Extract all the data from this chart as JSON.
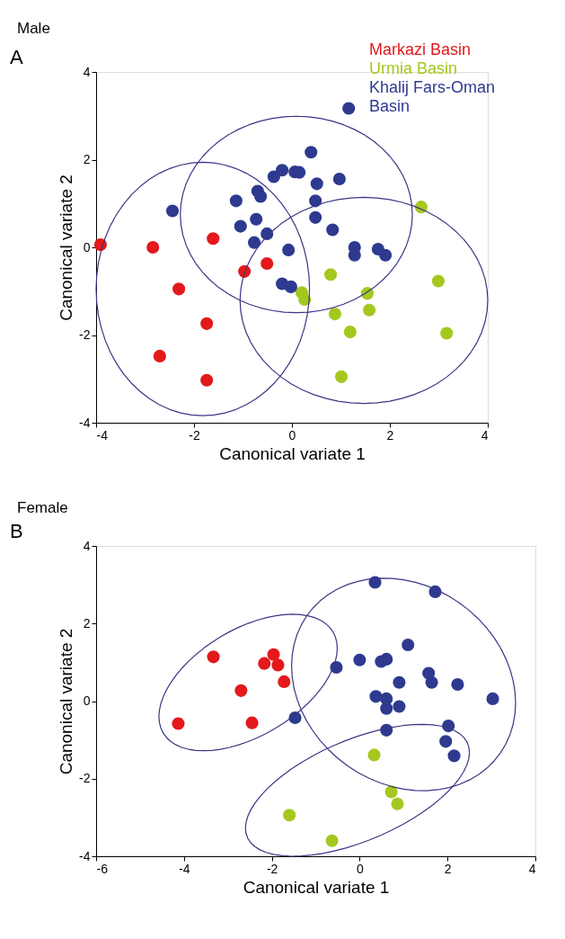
{
  "chart_data": [
    {
      "type": "scatter",
      "title": "Male",
      "annotations": [
        "A"
      ],
      "xlabel": "Canonical variate 1",
      "ylabel": "Canonical variate 2",
      "xlim": [
        -4,
        4
      ],
      "ylim": [
        -4,
        4
      ],
      "xticks": [
        -4,
        -2,
        0,
        2,
        4
      ],
      "yticks": [
        -4,
        -2,
        0,
        2,
        4
      ],
      "grid": false,
      "legend": "top right",
      "marker": "circle",
      "series": [
        {
          "name": "Markazi Basin",
          "color": "#e3191c",
          "x": [
            -3.91,
            -2.84,
            -2.31,
            -1.61,
            -1.74,
            -2.7,
            -1.74,
            -0.97,
            -0.51
          ],
          "values": [
            0.06,
            0.0,
            -0.95,
            0.2,
            -1.74,
            -2.48,
            -3.03,
            -0.55,
            -0.37
          ]
        },
        {
          "name": "Urmia Basin",
          "color": "#a5c81e",
          "x": [
            2.64,
            0.79,
            0.2,
            0.26,
            1.54,
            0.88,
            1.58,
            1.19,
            2.99,
            3.16,
            1.01
          ],
          "values": [
            0.92,
            -0.62,
            -1.03,
            -1.19,
            -1.05,
            -1.52,
            -1.43,
            -1.93,
            -0.77,
            -1.96,
            -2.95
          ]
        },
        {
          "name": "Khalij Fars-Oman Basin",
          "color": "#2e3a8f",
          "x": [
            1.16,
            0.39,
            -2.44,
            -1.14,
            -0.7,
            -0.64,
            -0.37,
            -0.2,
            0.06,
            0.15,
            0.51,
            0.97,
            0.48,
            0.48,
            -0.73,
            -1.05,
            -0.77,
            -0.51,
            -0.07,
            0.83,
            1.28,
            1.28,
            1.76,
            1.91,
            -0.2,
            -0.02
          ],
          "values": [
            3.17,
            2.17,
            0.83,
            1.06,
            1.28,
            1.16,
            1.61,
            1.76,
            1.72,
            1.71,
            1.45,
            1.56,
            1.06,
            0.68,
            0.64,
            0.48,
            0.11,
            0.31,
            -0.06,
            0.4,
            0.0,
            -0.18,
            -0.04,
            -0.18,
            -0.83,
            -0.9
          ]
        }
      ]
    },
    {
      "type": "scatter",
      "title": "Female",
      "annotations": [
        "B"
      ],
      "xlabel": "Canonical variate 1",
      "ylabel": "Canonical variate 2",
      "xlim": [
        -6,
        4
      ],
      "ylim": [
        -4,
        4
      ],
      "xticks": [
        -6,
        -4,
        -2,
        0,
        2,
        4
      ],
      "yticks": [
        -4,
        -2,
        0,
        2,
        4
      ],
      "grid": false,
      "marker": "circle",
      "series": [
        {
          "color": "#e3191c",
          "x": [
            -3.33,
            -1.96,
            -2.17,
            -1.86,
            -1.72,
            -2.7,
            -4.13,
            -2.45
          ],
          "values": [
            1.14,
            1.2,
            0.97,
            0.93,
            0.5,
            0.27,
            -0.58,
            -0.56
          ]
        },
        {
          "color": "#a5c81e",
          "x": [
            0.33,
            0.72,
            0.86,
            -1.6,
            -0.63
          ],
          "values": [
            -1.39,
            -2.34,
            -2.65,
            -2.94,
            -3.6
          ]
        },
        {
          "color": "#2e3a8f",
          "x": [
            0.35,
            1.72,
            1.1,
            0.0,
            0.49,
            0.61,
            -0.53,
            1.57,
            1.64,
            0.9,
            2.23,
            3.03,
            0.37,
            0.61,
            0.61,
            0.9,
            -1.47,
            0.61,
            2.02,
            1.96,
            2.15
          ],
          "values": [
            3.06,
            2.82,
            1.45,
            1.06,
            1.02,
            1.08,
            0.87,
            0.72,
            0.48,
            0.48,
            0.43,
            0.06,
            0.12,
            0.06,
            -0.19,
            -0.14,
            -0.43,
            -0.75,
            -0.64,
            -1.04,
            -1.41
          ]
        }
      ]
    }
  ]
}
